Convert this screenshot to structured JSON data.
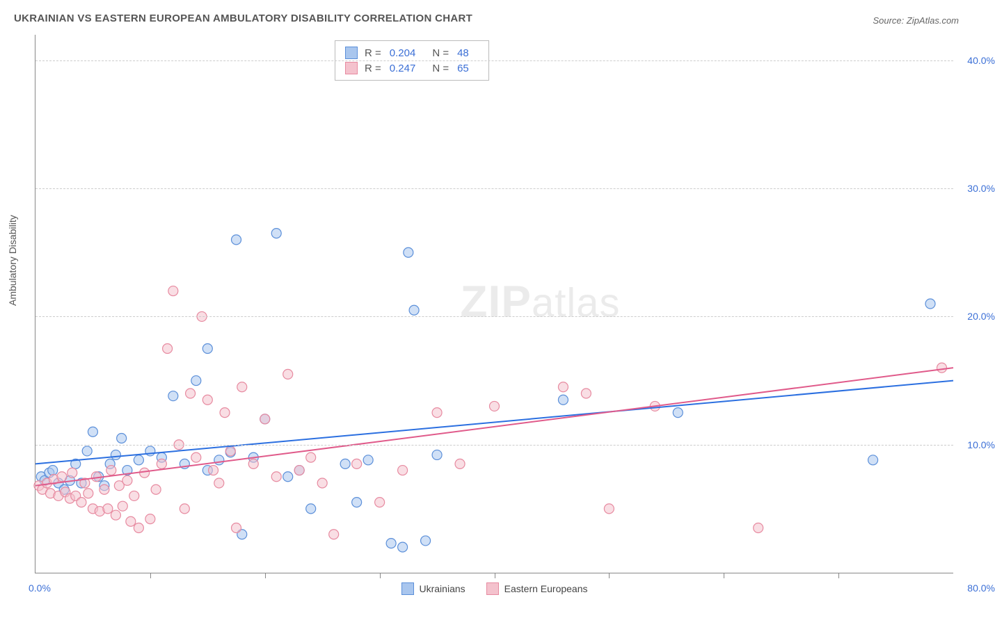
{
  "title": "UKRAINIAN VS EASTERN EUROPEAN AMBULATORY DISABILITY CORRELATION CHART",
  "source_label": "Source: ZipAtlas.com",
  "y_axis_label": "Ambulatory Disability",
  "watermark": {
    "bold": "ZIP",
    "rest": "atlas"
  },
  "chart": {
    "type": "scatter",
    "xlim": [
      0,
      80
    ],
    "ylim": [
      0,
      42
    ],
    "x_origin_label": "0.0%",
    "x_max_label": "80.0%",
    "x_tick_positions": [
      10,
      20,
      30,
      40,
      50,
      60,
      70
    ],
    "y_gridlines": [
      10,
      20,
      30,
      40
    ],
    "y_tick_labels": [
      "10.0%",
      "20.0%",
      "30.0%",
      "40.0%"
    ],
    "background_color": "#ffffff",
    "grid_color": "#cccccc",
    "marker_radius": 7,
    "marker_opacity": 0.55,
    "axis_color": "#888888"
  },
  "series": [
    {
      "id": "ukrainians",
      "label": "Ukrainians",
      "color_fill": "#a9c6ee",
      "color_stroke": "#5b8fd9",
      "line_color": "#2b6fe0",
      "r_label": "R =",
      "r_value": "0.204",
      "n_label": "N =",
      "n_value": "48",
      "trend": {
        "x1": 0,
        "y1": 8.5,
        "x2": 80,
        "y2": 15.0
      },
      "points": [
        [
          0.5,
          7.5
        ],
        [
          0.8,
          7.2
        ],
        [
          1.2,
          7.8
        ],
        [
          1.5,
          8.0
        ],
        [
          2,
          7.0
        ],
        [
          2.5,
          6.5
        ],
        [
          3,
          7.2
        ],
        [
          3.5,
          8.5
        ],
        [
          4,
          7.0
        ],
        [
          4.5,
          9.5
        ],
        [
          5,
          11.0
        ],
        [
          5.5,
          7.5
        ],
        [
          6,
          6.8
        ],
        [
          6.5,
          8.5
        ],
        [
          7,
          9.2
        ],
        [
          7.5,
          10.5
        ],
        [
          8,
          8.0
        ],
        [
          9,
          8.8
        ],
        [
          10,
          9.5
        ],
        [
          11,
          9.0
        ],
        [
          12,
          13.8
        ],
        [
          13,
          8.5
        ],
        [
          14,
          15.0
        ],
        [
          15,
          8.0
        ],
        [
          15,
          17.5
        ],
        [
          16,
          8.8
        ],
        [
          17,
          9.4
        ],
        [
          17.5,
          26.0
        ],
        [
          18,
          3.0
        ],
        [
          19,
          9.0
        ],
        [
          20,
          12.0
        ],
        [
          21,
          26.5
        ],
        [
          22,
          7.5
        ],
        [
          23,
          8.0
        ],
        [
          24,
          5.0
        ],
        [
          27,
          8.5
        ],
        [
          28,
          5.5
        ],
        [
          29,
          8.8
        ],
        [
          31,
          2.3
        ],
        [
          32,
          2.0
        ],
        [
          32.5,
          25.0
        ],
        [
          33,
          20.5
        ],
        [
          34,
          2.5
        ],
        [
          35,
          9.2
        ],
        [
          46,
          13.5
        ],
        [
          56,
          12.5
        ],
        [
          73,
          8.8
        ],
        [
          78,
          21.0
        ]
      ]
    },
    {
      "id": "eastern_europeans",
      "label": "Eastern Europeans",
      "color_fill": "#f4c2cd",
      "color_stroke": "#e78aa0",
      "line_color": "#e05a8a",
      "r_label": "R =",
      "r_value": "0.247",
      "n_label": "N =",
      "n_value": "65",
      "trend": {
        "x1": 0,
        "y1": 6.8,
        "x2": 80,
        "y2": 16.0
      },
      "points": [
        [
          0.3,
          6.8
        ],
        [
          0.6,
          6.5
        ],
        [
          1,
          7.0
        ],
        [
          1.3,
          6.2
        ],
        [
          1.6,
          7.3
        ],
        [
          2,
          6.0
        ],
        [
          2.3,
          7.5
        ],
        [
          2.6,
          6.3
        ],
        [
          3,
          5.8
        ],
        [
          3.2,
          7.8
        ],
        [
          3.5,
          6.0
        ],
        [
          4,
          5.5
        ],
        [
          4.3,
          7.0
        ],
        [
          4.6,
          6.2
        ],
        [
          5,
          5.0
        ],
        [
          5.3,
          7.5
        ],
        [
          5.6,
          4.8
        ],
        [
          6,
          6.5
        ],
        [
          6.3,
          5.0
        ],
        [
          6.6,
          8.0
        ],
        [
          7,
          4.5
        ],
        [
          7.3,
          6.8
        ],
        [
          7.6,
          5.2
        ],
        [
          8,
          7.2
        ],
        [
          8.3,
          4.0
        ],
        [
          8.6,
          6.0
        ],
        [
          9,
          3.5
        ],
        [
          9.5,
          7.8
        ],
        [
          10,
          4.2
        ],
        [
          10.5,
          6.5
        ],
        [
          11,
          8.5
        ],
        [
          11.5,
          17.5
        ],
        [
          12,
          22.0
        ],
        [
          12.5,
          10.0
        ],
        [
          13,
          5.0
        ],
        [
          13.5,
          14.0
        ],
        [
          14,
          9.0
        ],
        [
          14.5,
          20.0
        ],
        [
          15,
          13.5
        ],
        [
          15.5,
          8.0
        ],
        [
          16,
          7.0
        ],
        [
          16.5,
          12.5
        ],
        [
          17,
          9.5
        ],
        [
          17.5,
          3.5
        ],
        [
          18,
          14.5
        ],
        [
          19,
          8.5
        ],
        [
          20,
          12.0
        ],
        [
          21,
          7.5
        ],
        [
          22,
          15.5
        ],
        [
          23,
          8.0
        ],
        [
          24,
          9.0
        ],
        [
          25,
          7.0
        ],
        [
          26,
          3.0
        ],
        [
          28,
          8.5
        ],
        [
          30,
          5.5
        ],
        [
          32,
          8.0
        ],
        [
          35,
          12.5
        ],
        [
          37,
          8.5
        ],
        [
          40,
          13.0
        ],
        [
          46,
          14.5
        ],
        [
          48,
          14.0
        ],
        [
          50,
          5.0
        ],
        [
          54,
          13.0
        ],
        [
          63,
          3.5
        ],
        [
          79,
          16.0
        ]
      ]
    }
  ],
  "bottom_legend": [
    {
      "label": "Ukrainians",
      "fill": "#a9c6ee",
      "stroke": "#5b8fd9"
    },
    {
      "label": "Eastern Europeans",
      "fill": "#f4c2cd",
      "stroke": "#e78aa0"
    }
  ]
}
